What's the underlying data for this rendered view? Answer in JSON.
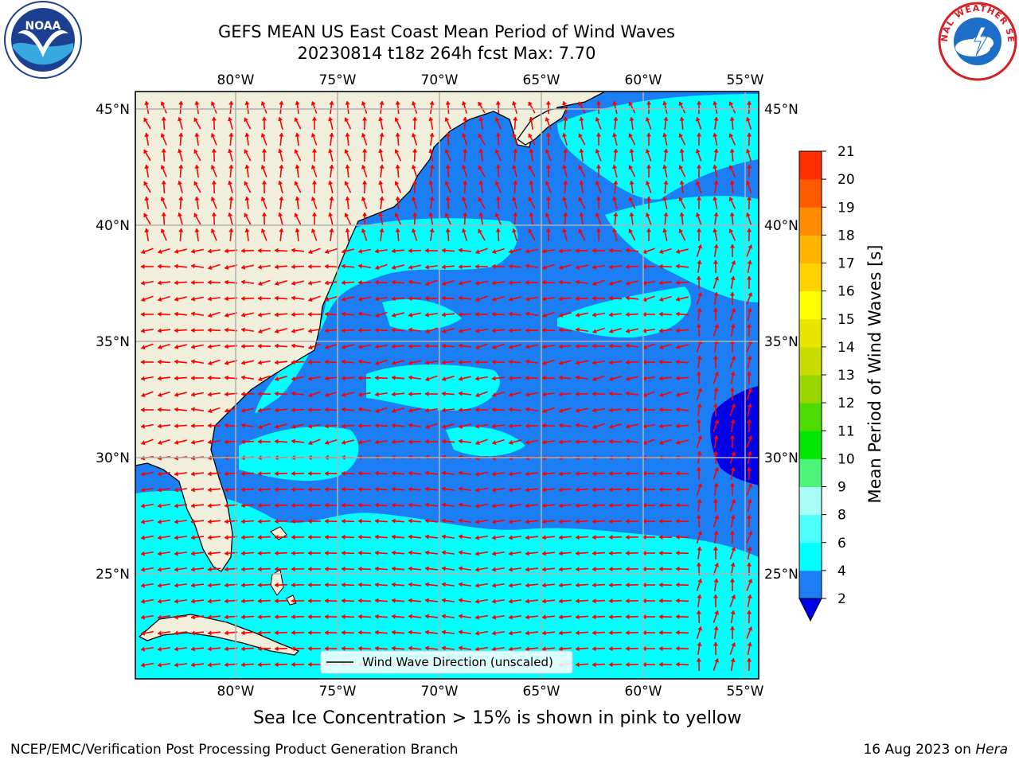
{
  "header": {
    "title_line1": "GEFS MEAN US East Coast Mean Period of Wind Waves",
    "title_line2": "20230814 t18z 264h fcst   Max: 7.70"
  },
  "map": {
    "lon_labels": [
      "80°W",
      "75°W",
      "70°W",
      "65°W",
      "60°W",
      "55°W"
    ],
    "lat_labels": [
      "45°N",
      "40°N",
      "35°N",
      "30°N",
      "25°N"
    ],
    "lon_values": [
      -80,
      -75,
      -70,
      -65,
      -60,
      -55
    ],
    "lat_values": [
      45,
      40,
      35,
      30,
      25
    ],
    "extent": {
      "lon_min": -85,
      "lon_max": -54.3,
      "lat_min": 20.5,
      "lat_max": 45.8
    },
    "colors": {
      "land": "#efefdc",
      "ocean_2_4": "#1b7ef5",
      "ocean_4_6": "#00ffff",
      "ocean_below_2": "#0000e6",
      "arrow": "#ff0000",
      "grid": "#b0b0b0"
    },
    "legend_label": "Wind Wave Direction (unscaled)"
  },
  "colorbar": {
    "label": "Mean Period of Wind Waves [s]",
    "ticks": [
      "2",
      "4",
      "6",
      "8",
      "9",
      "10",
      "11",
      "12",
      "13",
      "14",
      "15",
      "16",
      "17",
      "18",
      "19",
      "20",
      "21"
    ],
    "colors": [
      "#1b7ef5",
      "#00ffff",
      "#4dfffa",
      "#a8fff7",
      "#4cf57a",
      "#00e600",
      "#4ddc00",
      "#9ad600",
      "#c8dc00",
      "#e6e600",
      "#ffff00",
      "#ffd200",
      "#ffb400",
      "#ff8c00",
      "#ff5a00",
      "#ff2d00",
      "#ff0000"
    ],
    "under_color": "#0000e6"
  },
  "caption": "Sea Ice Concentration > 15% is shown in pink to yellow",
  "footer": {
    "left": "NCEP/EMC/Verification Post Processing Product Generation Branch",
    "date": "16 Aug 2023 on ",
    "machine": "Hera"
  },
  "logos": {
    "noaa_text": "NOAA",
    "nws_text": "NATIONAL WEATHER SERVICE"
  }
}
